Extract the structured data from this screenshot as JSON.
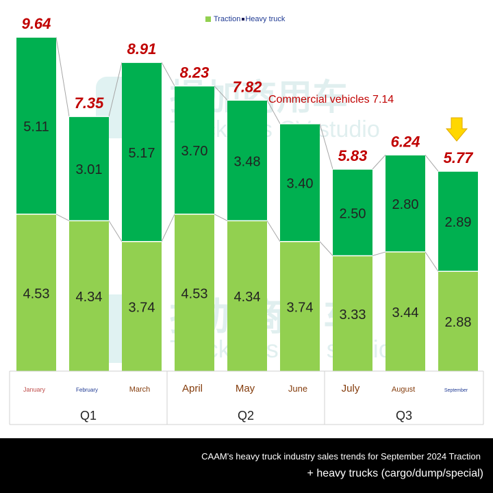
{
  "legend": {
    "traction_label": "Traction",
    "heavy_label": "Heavy truck",
    "traction_color": "#92d050",
    "heavy_color": "#00b050"
  },
  "annotation": {
    "commercial": "Commercial vehicles 7.14"
  },
  "watermark": {
    "chinese": "提加商用车",
    "english": "TruckPlus CV studio"
  },
  "footer": {
    "line1": "CAAM's heavy truck industry sales trends for September 2024 Traction",
    "line2": "+ heavy trucks (cargo/dump/special)"
  },
  "chart_data": {
    "type": "bar",
    "stacked": true,
    "categories": [
      "January",
      "February",
      "March",
      "April",
      "May",
      "June",
      "July",
      "August",
      "September"
    ],
    "groups": [
      {
        "label": "Q1",
        "categories": [
          "January",
          "February",
          "March"
        ]
      },
      {
        "label": "Q2",
        "categories": [
          "April",
          "May",
          "June"
        ]
      },
      {
        "label": "Q3",
        "categories": [
          "July",
          "August",
          "September"
        ]
      }
    ],
    "series": [
      {
        "name": "Traction",
        "values": [
          4.53,
          4.34,
          3.74,
          4.53,
          4.34,
          3.74,
          3.33,
          3.44,
          2.88
        ],
        "color": "#92d050"
      },
      {
        "name": "Heavy truck",
        "values": [
          5.11,
          3.01,
          5.17,
          3.7,
          3.48,
          3.4,
          2.5,
          2.8,
          2.89
        ],
        "color": "#00b050"
      }
    ],
    "totals": [
      "9.64",
      "7.35",
      "8.91",
      "8.23",
      "7.82",
      "",
      "5.83",
      "6.24",
      "5.77"
    ],
    "total_label_color": "#c00000",
    "highlight_arrow_category": "September",
    "grid": false
  }
}
